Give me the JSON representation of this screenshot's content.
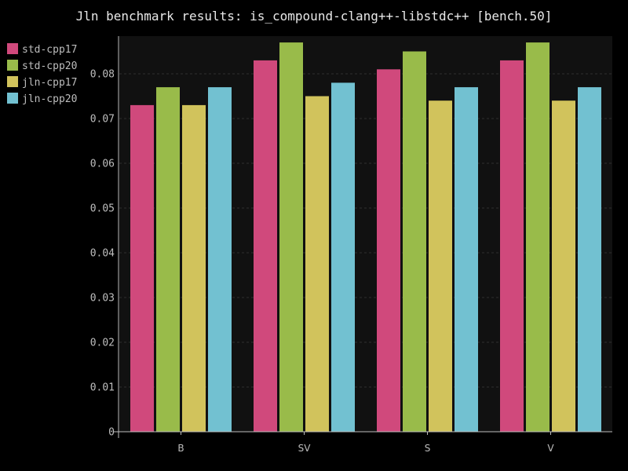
{
  "chart_data": {
    "type": "bar",
    "title": "Jln benchmark results: is_compound-clang++-libstdc++ [bench.50]",
    "xlabel": "",
    "ylabel": "",
    "categories": [
      "B",
      "SV",
      "S",
      "V"
    ],
    "series": [
      {
        "name": "std-cpp17",
        "color": "#d0497c",
        "values": [
          0.073,
          0.083,
          0.081,
          0.083
        ]
      },
      {
        "name": "std-cpp20",
        "color": "#99bb4a",
        "values": [
          0.077,
          0.087,
          0.085,
          0.087
        ]
      },
      {
        "name": "jln-cpp17",
        "color": "#d1c35c",
        "values": [
          0.073,
          0.075,
          0.074,
          0.074
        ]
      },
      {
        "name": "jln-cpp20",
        "color": "#72c1d1",
        "values": [
          0.077,
          0.078,
          0.077,
          0.077
        ]
      }
    ],
    "ylim": [
      0,
      0.088
    ],
    "yticks": [
      "0",
      "0.01",
      "0.02",
      "0.03",
      "0.04",
      "0.05",
      "0.06",
      "0.07",
      "0.08"
    ],
    "grid": true,
    "legend": "top-left",
    "background": "#000000",
    "plot_background": "#111111"
  }
}
